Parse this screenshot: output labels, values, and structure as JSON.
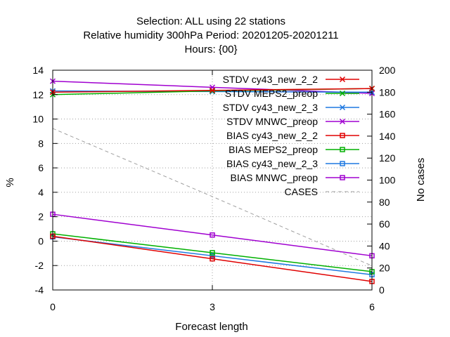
{
  "chart_data": {
    "type": "line",
    "title_lines": [
      "Selection: ALL using    22 stations",
      "Relative humidity 300hPa   Period: 20201205-20201211",
      "Hours: {00}"
    ],
    "xlabel": "Forecast length",
    "ylabel": "%",
    "y2label": "No cases",
    "x": [
      0,
      3,
      6
    ],
    "xlim": [
      0,
      6
    ],
    "ylim": [
      -4,
      14
    ],
    "y2lim": [
      0,
      200
    ],
    "xticks": [
      0,
      3,
      6
    ],
    "yticks": [
      -4,
      -2,
      0,
      2,
      4,
      6,
      8,
      10,
      12,
      14
    ],
    "y2ticks": [
      0,
      20,
      40,
      60,
      80,
      100,
      120,
      140,
      160,
      180,
      200
    ],
    "grid": true,
    "legend_position": "top-right",
    "series": [
      {
        "name": "STDV cy43_new_2_2",
        "axis": "y",
        "marker": "x",
        "color": "#e00000",
        "dash": false,
        "values": [
          12.2,
          12.35,
          12.5
        ]
      },
      {
        "name": "STDV MEPS2_preop",
        "axis": "y",
        "marker": "x",
        "color": "#00b000",
        "dash": false,
        "values": [
          12.0,
          12.3,
          12.5
        ]
      },
      {
        "name": "STDV cy43_new_2_3",
        "axis": "y",
        "marker": "x",
        "color": "#1e78e0",
        "dash": false,
        "values": [
          12.3,
          12.25,
          12.2
        ]
      },
      {
        "name": "STDV MNWC_preop",
        "axis": "y",
        "marker": "x",
        "color": "#a000d0",
        "dash": false,
        "values": [
          13.1,
          12.6,
          12.1
        ]
      },
      {
        "name": "BIAS cy43_new_2_2",
        "axis": "y",
        "marker": "square",
        "color": "#e00000",
        "dash": false,
        "values": [
          0.4,
          -1.45,
          -3.3
        ]
      },
      {
        "name": "BIAS MEPS2_preop",
        "axis": "y",
        "marker": "square",
        "color": "#00b000",
        "dash": false,
        "values": [
          0.6,
          -0.95,
          -2.5
        ]
      },
      {
        "name": "BIAS cy43_new_2_3",
        "axis": "y",
        "marker": "square",
        "color": "#1e78e0",
        "dash": false,
        "values": [
          0.35,
          -1.2,
          -2.75
        ]
      },
      {
        "name": "BIAS MNWC_preop",
        "axis": "y",
        "marker": "square",
        "color": "#a000d0",
        "dash": false,
        "values": [
          2.2,
          0.5,
          -1.2
        ]
      },
      {
        "name": "CASES",
        "axis": "y2",
        "marker": "none",
        "color": "#a0a0a0",
        "dash": true,
        "values": [
          147,
          85,
          22
        ]
      }
    ]
  }
}
